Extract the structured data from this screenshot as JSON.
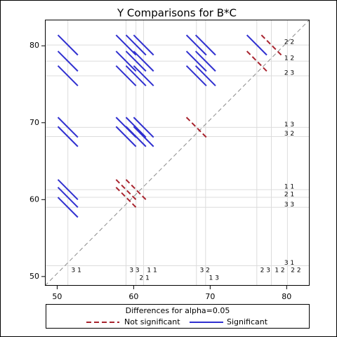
{
  "chart_data": {
    "type": "diffogram",
    "title": "Y Comparisons for B*C",
    "groups": [
      {
        "label": "3 1",
        "mean": 51.4
      },
      {
        "label": "3 3",
        "mean": 59.0
      },
      {
        "label": "2 1",
        "mean": 60.3
      },
      {
        "label": "1 1",
        "mean": 61.3
      },
      {
        "label": "3 2",
        "mean": 68.2
      },
      {
        "label": "1 3",
        "mean": 69.4
      },
      {
        "label": "2 3",
        "mean": 76.1
      },
      {
        "label": "1 2",
        "mean": 78.0
      },
      {
        "label": "2 2",
        "mean": 80.1
      }
    ],
    "half_length": 1.3,
    "not_significant": [
      [
        1,
        2
      ],
      [
        1,
        3
      ],
      [
        2,
        3
      ],
      [
        4,
        5
      ],
      [
        6,
        7
      ],
      [
        7,
        8
      ]
    ],
    "xlim": [
      48.4,
      83.0
    ],
    "ylim": [
      48.8,
      83.4
    ],
    "xticks": [
      50,
      60,
      70,
      80
    ],
    "yticks": [
      50,
      60,
      70,
      80
    ],
    "legend": {
      "title": "Differences for alpha=0.05",
      "series": [
        {
          "name": "Not significant",
          "color": "#a8232e"
        },
        {
          "name": "Significant",
          "color": "#3030d0"
        }
      ]
    }
  }
}
